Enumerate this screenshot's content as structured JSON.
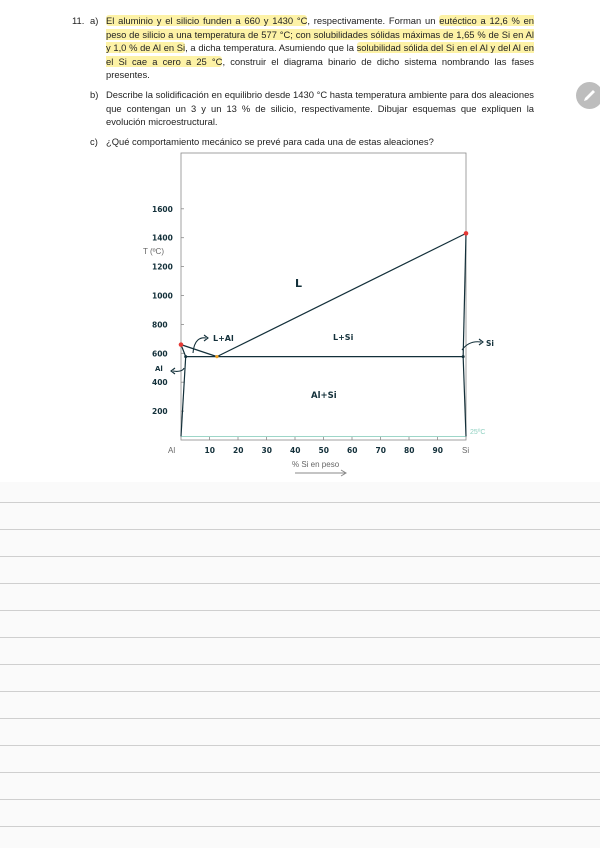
{
  "question": {
    "number": "11.",
    "a": {
      "label": "a)",
      "parts": [
        {
          "text": "El aluminio y el silicio funden a 660 y 1430 °C",
          "highlight": true
        },
        {
          "text": ", respectivamente. Forman un ",
          "highlight": false
        },
        {
          "text": "eutéctico a 12,6 % en peso de silicio a una temperatura de 577 °C; con solubilidades sólidas máximas de 1,65 % de Si en Al y 1,0 % de Al en Si",
          "highlight": true
        },
        {
          "text": ", a dicha temperatura. Asumiendo que la ",
          "highlight": false
        },
        {
          "text": "solubilidad sólida del Si en el Al y del Al en el Si cae a cero a 25 °C",
          "highlight": true
        },
        {
          "text": ", construir el diagrama binario de dicho sistema nombrando las fases presentes.",
          "highlight": false
        }
      ]
    },
    "b": {
      "label": "b)",
      "text": "Describe la solidificación en equilibrio desde 1430 °C hasta temperatura ambiente para dos aleaciones que contengan un 3 y un 13 % de silicio, respectivamente. Dibujar esquemas que expliquen la evolución microestructural."
    },
    "c": {
      "label": "c)",
      "text": "¿Qué comportamiento mecánico se prevé para cada una de estas aleaciones?"
    }
  },
  "diagram": {
    "ylabel": "T (ºC)",
    "xlabel": "% Si en peso",
    "y_ticks": [
      "1600",
      "1400",
      "1200",
      "1000",
      "800",
      "600",
      "400",
      "200"
    ],
    "y_tick_values": [
      1600,
      1400,
      1200,
      1000,
      800,
      600,
      400,
      200
    ],
    "x_ticks": [
      "10",
      "20",
      "30",
      "40",
      "50",
      "60",
      "70",
      "80",
      "90"
    ],
    "x_tick_values": [
      10,
      20,
      30,
      40,
      50,
      60,
      70,
      80,
      90
    ],
    "x_end_labels": [
      "Al",
      "Si"
    ],
    "phases": {
      "liquid": "L",
      "l_al": "L+Al",
      "l_si": "L+Si",
      "al_si": "Al+Si",
      "al": "Al",
      "si": "Si"
    },
    "room_temp_label": "25ºC",
    "melting_al": [
      0,
      660
    ],
    "melting_si": [
      100,
      1430
    ],
    "eutectic": [
      12.6,
      577
    ],
    "solubility_si_in_al": [
      1.65,
      577
    ],
    "solubility_al_in_si": [
      99,
      577
    ],
    "room_temp": 25,
    "colors": {
      "ink": "#13303a",
      "melting_point": "#e53935",
      "eutectic_point": "#f0a020",
      "room_temp_line": "#8fd0c0",
      "axis_gray": "#8a8a8a"
    }
  },
  "edit_button_icon": "pencil-icon"
}
